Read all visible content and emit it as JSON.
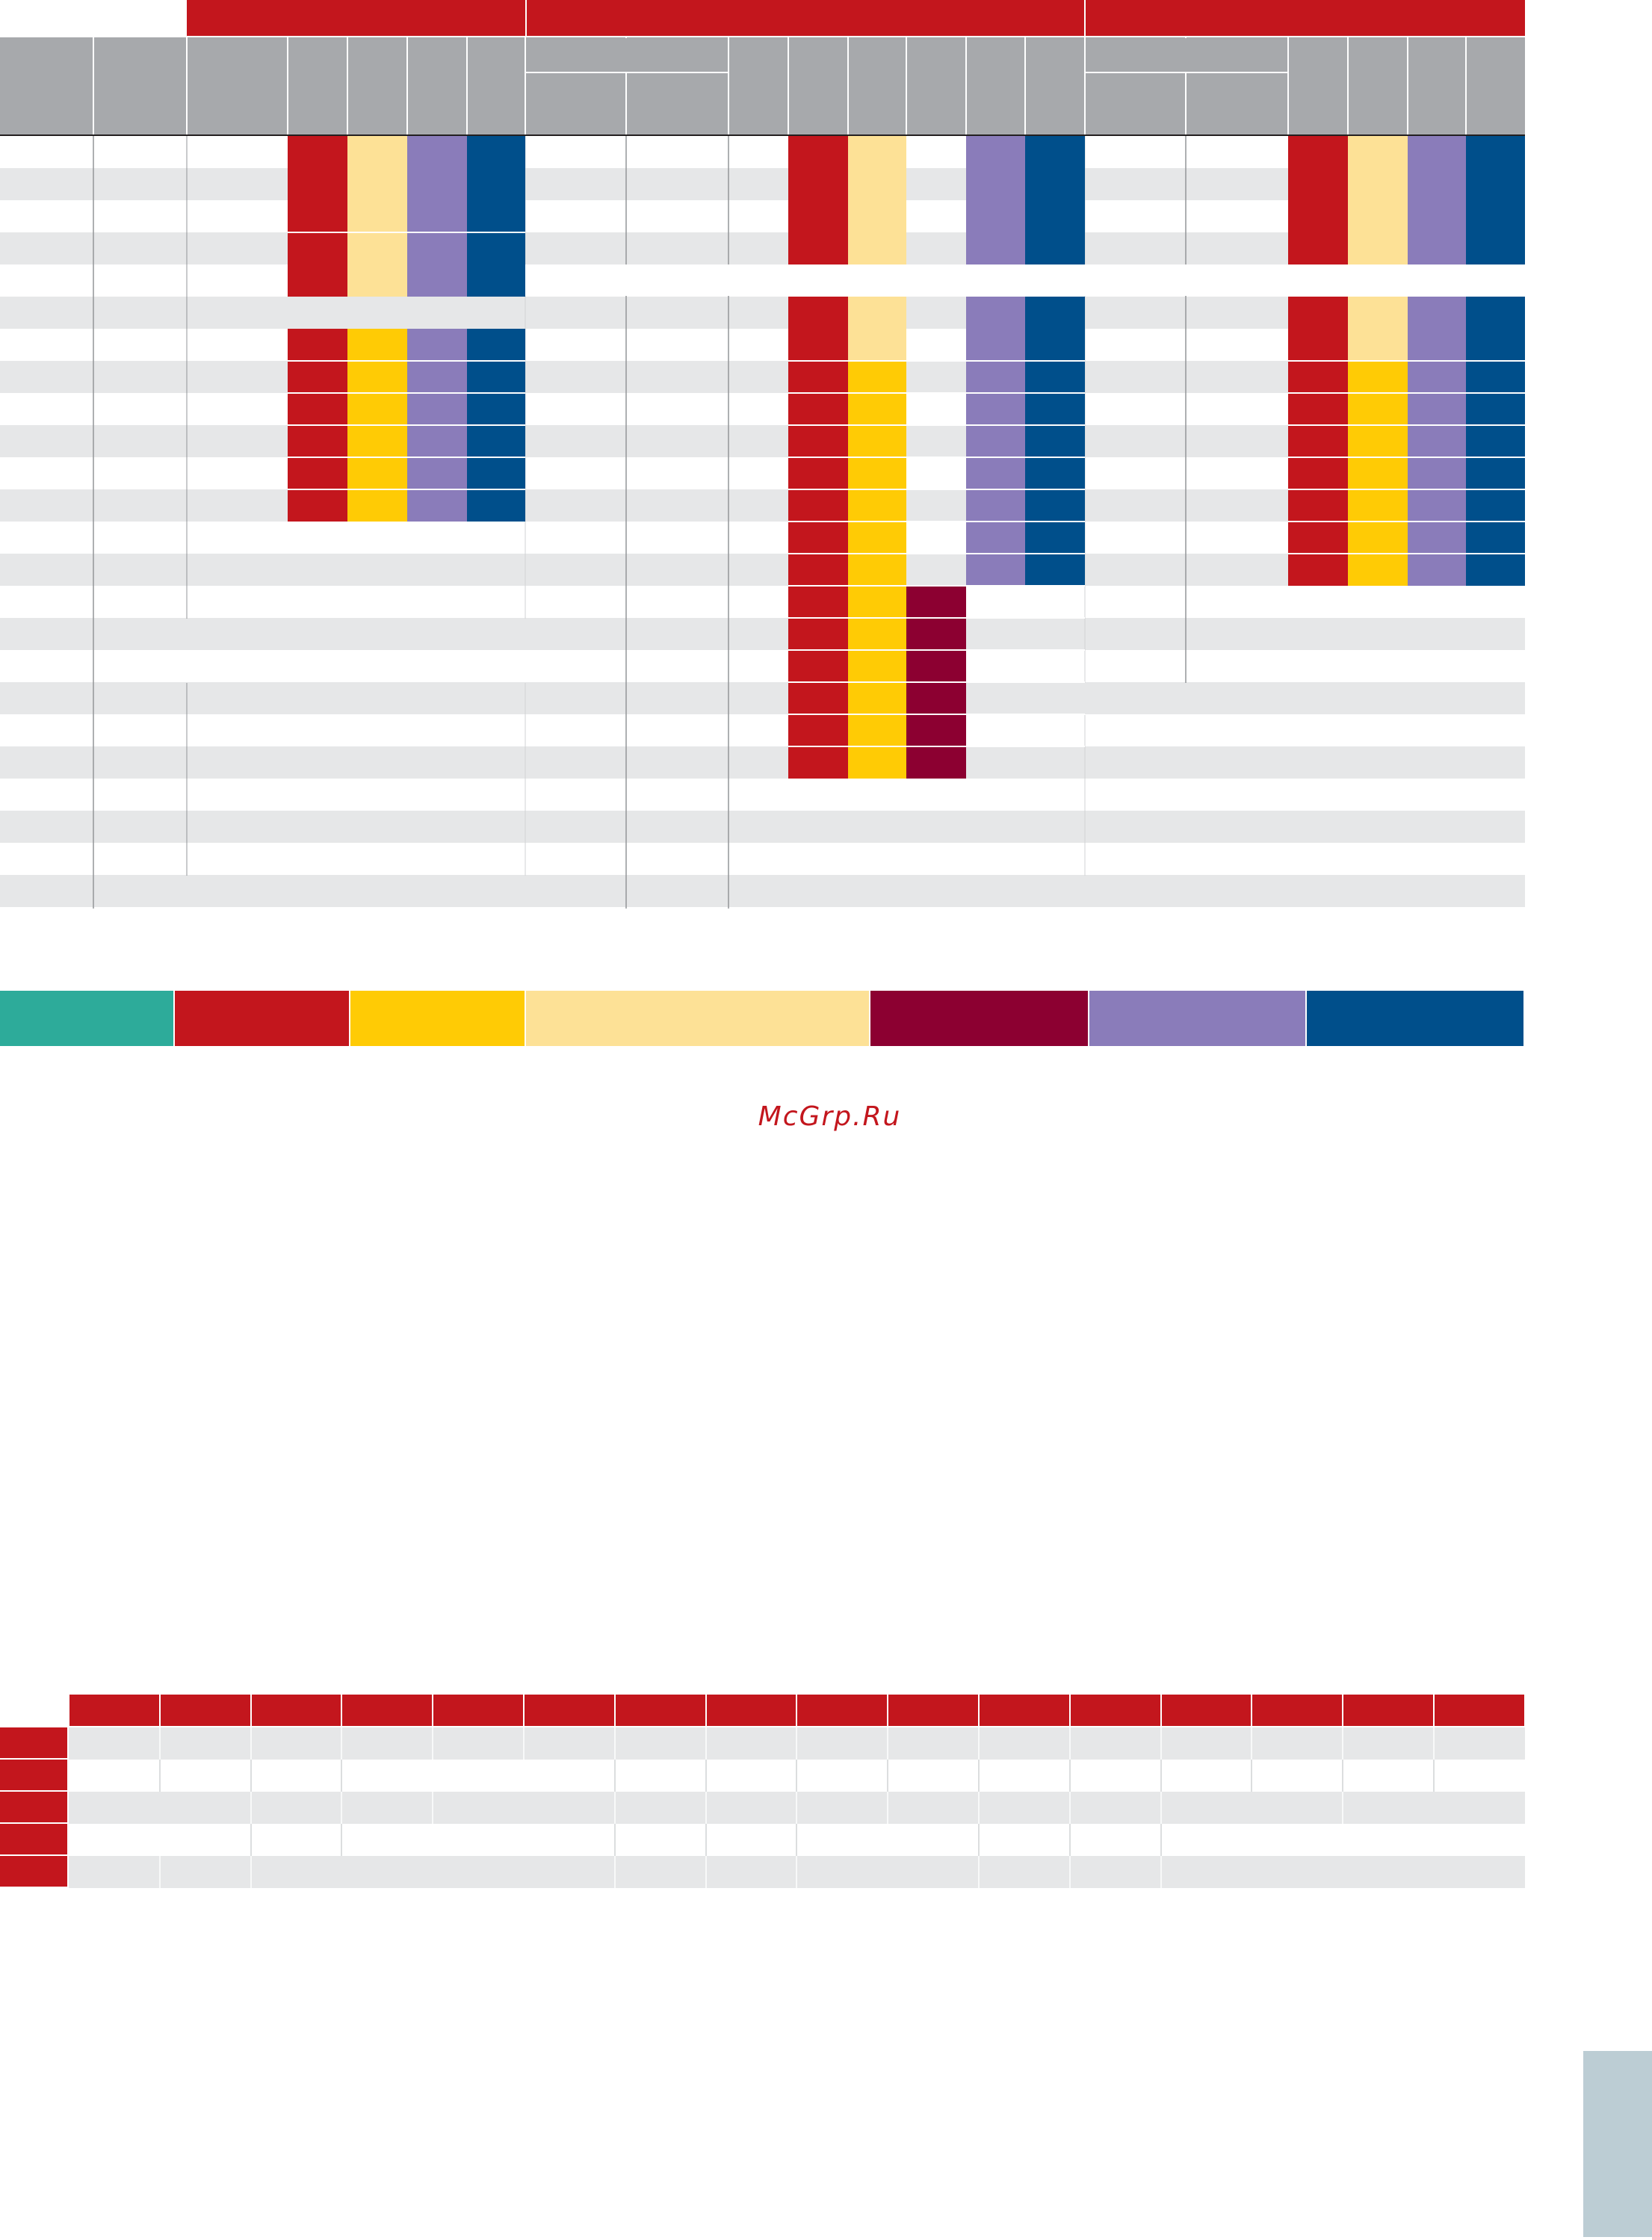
{
  "watermark": {
    "text": "McGrp.Ru"
  },
  "colors": {
    "red": "#c3161d",
    "light_yellow": "#fde196",
    "yellow": "#ffcb05",
    "purple": "#8a7cba",
    "blue": "#004f8b",
    "maroon": "#8c0031",
    "teal": "#2dab9a",
    "header_gray": "#a7a9ac",
    "stripe_gray": "#e6e7e8",
    "line_gray": "#939598",
    "tab_gray": "#bccdd4"
  },
  "upper_table": {
    "column_headers": [],
    "group_headers": [],
    "row_count": 24,
    "cells": []
  },
  "color_key": {
    "swatches": [
      "teal",
      "red",
      "yellow",
      "light_yellow",
      "maroon",
      "purple",
      "blue"
    ],
    "labels": []
  },
  "lower_table": {
    "column_headers": [],
    "row_labels": [],
    "row_count": 5
  },
  "side_tab": {
    "label": ""
  }
}
